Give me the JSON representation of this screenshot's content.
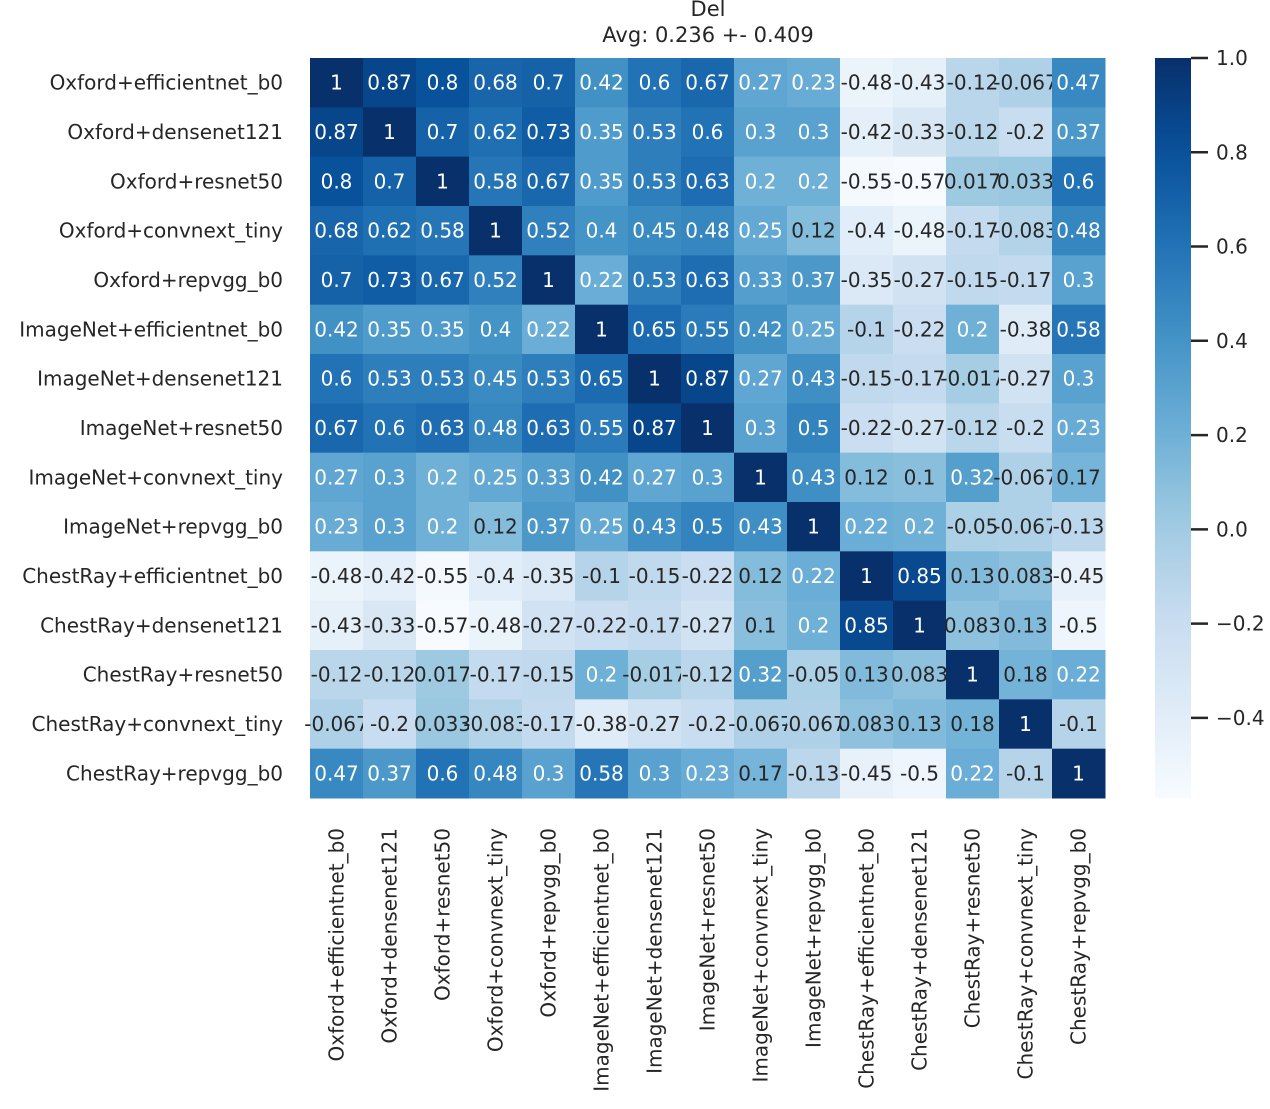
{
  "chart_data": {
    "type": "heatmap",
    "title": "Del",
    "subtitle": "Avg: 0.236 +- 0.409",
    "labels": [
      "Oxford+efficientnet_b0",
      "Oxford+densenet121",
      "Oxford+resnet50",
      "Oxford+convnext_tiny",
      "Oxford+repvgg_b0",
      "ImageNet+efficientnet_b0",
      "ImageNet+densenet121",
      "ImageNet+resnet50",
      "ImageNet+convnext_tiny",
      "ImageNet+repvgg_b0",
      "ChestRay+efficientnet_b0",
      "ChestRay+densenet121",
      "ChestRay+resnet50",
      "ChestRay+convnext_tiny",
      "ChestRay+repvgg_b0"
    ],
    "values": [
      [
        1,
        0.87,
        0.8,
        0.68,
        0.7,
        0.42,
        0.6,
        0.67,
        0.27,
        0.23,
        -0.48,
        -0.43,
        -0.12,
        -0.067,
        0.47
      ],
      [
        0.87,
        1,
        0.7,
        0.62,
        0.73,
        0.35,
        0.53,
        0.6,
        0.3,
        0.3,
        -0.42,
        -0.33,
        -0.12,
        -0.2,
        0.37
      ],
      [
        0.8,
        0.7,
        1,
        0.58,
        0.67,
        0.35,
        0.53,
        0.63,
        0.2,
        0.2,
        -0.55,
        -0.57,
        0.017,
        0.033,
        0.6
      ],
      [
        0.68,
        0.62,
        0.58,
        1,
        0.52,
        0.4,
        0.45,
        0.48,
        0.25,
        0.12,
        -0.4,
        -0.48,
        -0.17,
        -0.083,
        0.48
      ],
      [
        0.7,
        0.73,
        0.67,
        0.52,
        1,
        0.22,
        0.53,
        0.63,
        0.33,
        0.37,
        -0.35,
        -0.27,
        -0.15,
        -0.17,
        0.3
      ],
      [
        0.42,
        0.35,
        0.35,
        0.4,
        0.22,
        1,
        0.65,
        0.55,
        0.42,
        0.25,
        -0.1,
        -0.22,
        0.2,
        -0.38,
        0.58
      ],
      [
        0.6,
        0.53,
        0.53,
        0.45,
        0.53,
        0.65,
        1,
        0.87,
        0.27,
        0.43,
        -0.15,
        -0.17,
        -0.017,
        -0.27,
        0.3
      ],
      [
        0.67,
        0.6,
        0.63,
        0.48,
        0.63,
        0.55,
        0.87,
        1,
        0.3,
        0.5,
        -0.22,
        -0.27,
        -0.12,
        -0.2,
        0.23
      ],
      [
        0.27,
        0.3,
        0.2,
        0.25,
        0.33,
        0.42,
        0.27,
        0.3,
        1,
        0.43,
        0.12,
        0.1,
        0.32,
        -0.067,
        0.17
      ],
      [
        0.23,
        0.3,
        0.2,
        0.12,
        0.37,
        0.25,
        0.43,
        0.5,
        0.43,
        1,
        0.22,
        0.2,
        -0.05,
        -0.067,
        -0.13
      ],
      [
        -0.48,
        -0.42,
        -0.55,
        -0.4,
        -0.35,
        -0.1,
        -0.15,
        -0.22,
        0.12,
        0.22,
        1,
        0.85,
        0.13,
        0.083,
        -0.45
      ],
      [
        -0.43,
        -0.33,
        -0.57,
        -0.48,
        -0.27,
        -0.22,
        -0.17,
        -0.27,
        0.1,
        0.2,
        0.85,
        1,
        0.083,
        0.13,
        -0.5
      ],
      [
        -0.12,
        -0.12,
        0.017,
        -0.17,
        -0.15,
        0.2,
        -0.017,
        -0.12,
        0.32,
        -0.05,
        0.13,
        0.083,
        1,
        0.18,
        0.22
      ],
      [
        -0.067,
        -0.2,
        0.033,
        -0.083,
        -0.17,
        -0.38,
        -0.27,
        -0.2,
        -0.067,
        -0.067,
        0.083,
        0.13,
        0.18,
        1,
        -0.1
      ],
      [
        0.47,
        0.37,
        0.6,
        0.48,
        0.3,
        0.58,
        0.3,
        0.23,
        0.17,
        -0.13,
        -0.45,
        -0.5,
        0.22,
        -0.1,
        1
      ]
    ],
    "colormap": "Blues",
    "vmin": -0.57,
    "vmax": 1.0,
    "colorbar_ticks": [
      1.0,
      0.8,
      0.6,
      0.4,
      0.2,
      0.0,
      -0.2,
      -0.4
    ],
    "colorbar_tick_labels": [
      "1.0",
      "0.8",
      "0.6",
      "0.4",
      "0.2",
      "0.0",
      "−0.2",
      "−0.4"
    ],
    "annotations": true
  }
}
